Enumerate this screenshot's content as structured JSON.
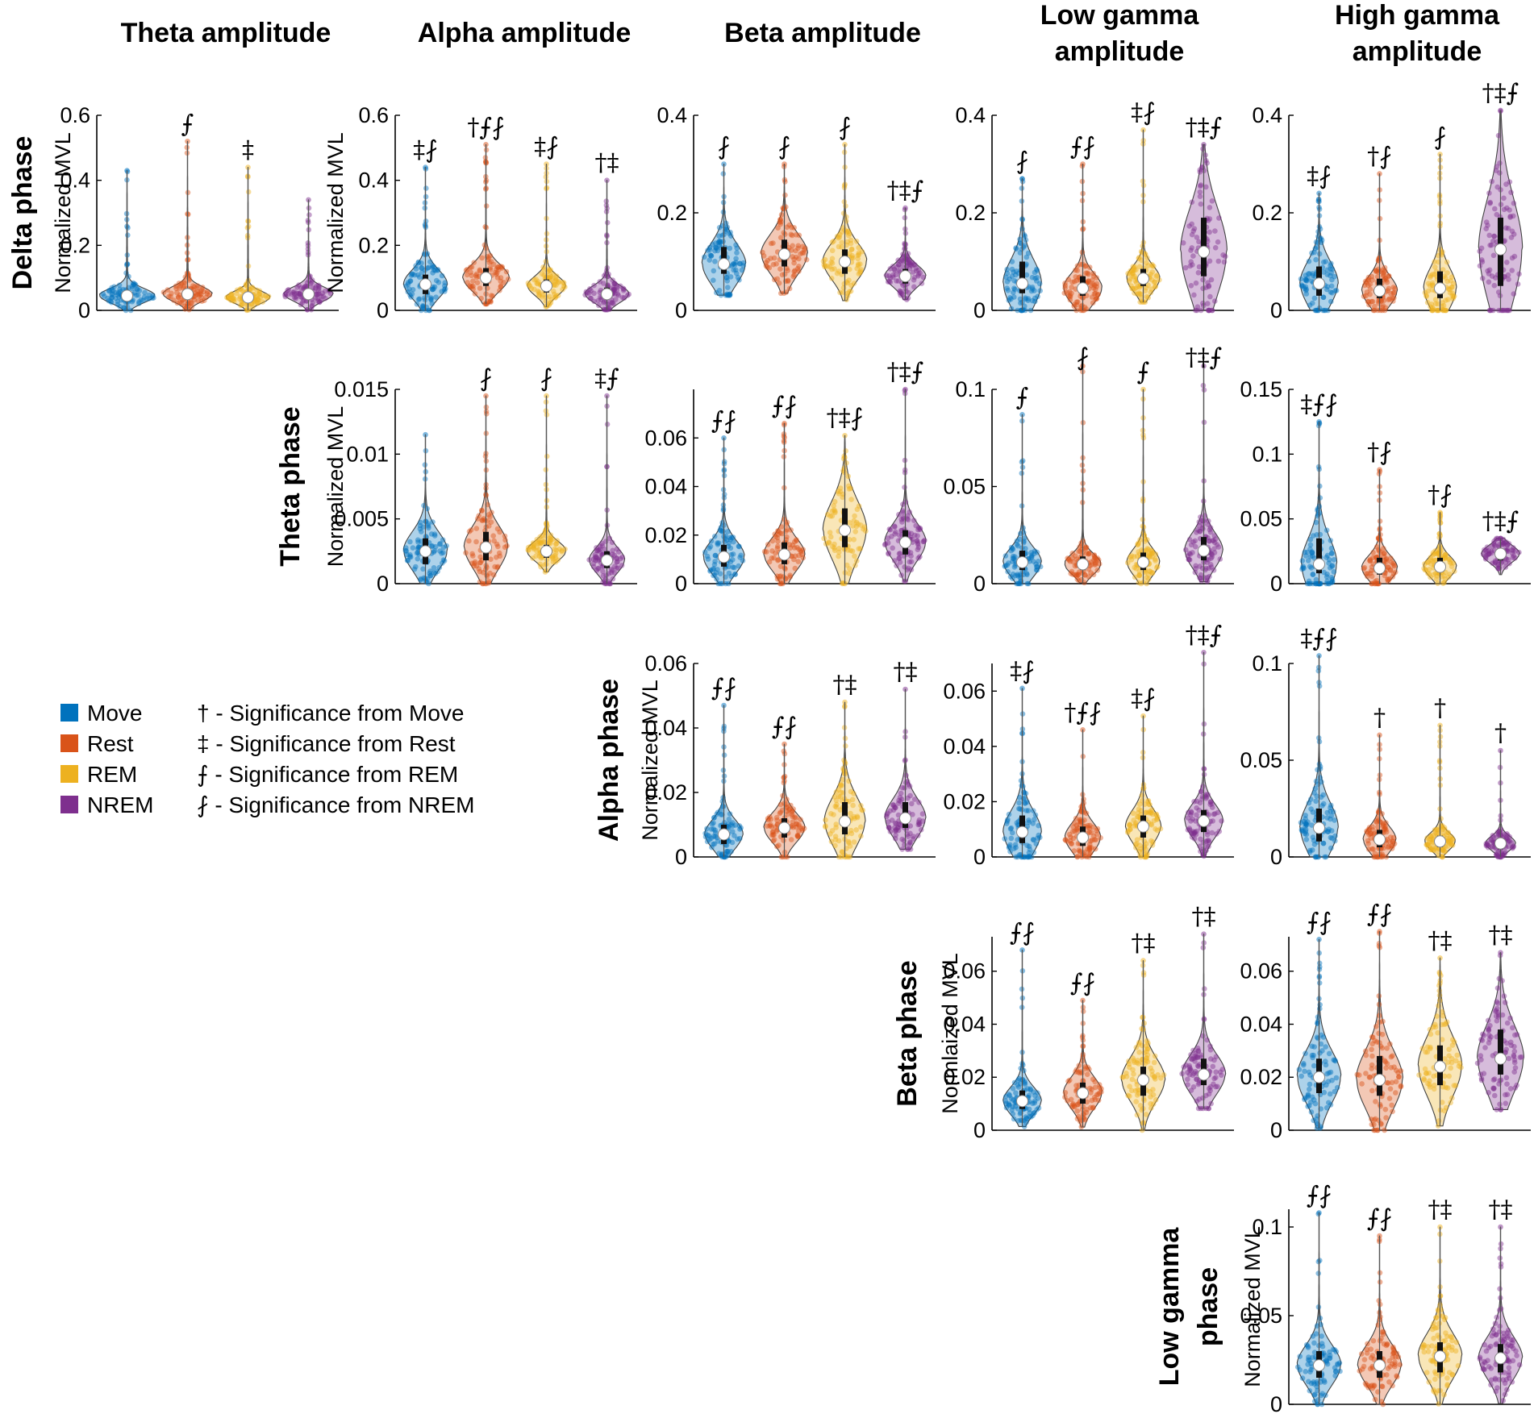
{
  "chart_data": {
    "type": "violin",
    "title": "",
    "column_titles": [
      [
        "Theta amplitude"
      ],
      [
        "Alpha amplitude"
      ],
      [
        "Beta amplitude"
      ],
      [
        "Low gamma",
        "amplitude"
      ],
      [
        "High gamma",
        "amplitude"
      ]
    ],
    "row_titles": [
      [
        "Delta phase"
      ],
      [
        "Theta phase"
      ],
      [
        "Alpha phase"
      ],
      [
        "Beta phase"
      ],
      [
        "Low gamma",
        "phase"
      ]
    ],
    "groups": [
      "Move",
      "Rest",
      "REM",
      "NREM"
    ],
    "colors": [
      "#0072BD",
      "#D95319",
      "#EDB120",
      "#7E2F8E"
    ],
    "legend": {
      "categories": [
        "Move",
        "Rest",
        "REM",
        "NREM"
      ],
      "significance": [
        "† - Significance from Move",
        "‡ - Significance from Rest",
        "⨍ - Significance from REM",
        "⨏ - Significance from NREM"
      ]
    },
    "panels": [
      {
        "row": 0,
        "col": 0,
        "ylabel": "Normalized MVL",
        "ylim": [
          0,
          0.6
        ],
        "ticks": [
          0,
          0.2,
          0.4,
          0.6
        ],
        "tick_labels": [
          "0",
          "0.2",
          "0.4",
          "0.6"
        ],
        "medians": [
          0.045,
          0.05,
          0.04,
          0.05
        ],
        "q1": [
          0.03,
          0.035,
          0.025,
          0.035
        ],
        "q3": [
          0.06,
          0.065,
          0.05,
          0.065
        ],
        "max": [
          0.43,
          0.52,
          0.44,
          0.34
        ],
        "widths": [
          1.0,
          0.9,
          0.8,
          0.9
        ],
        "sig": [
          "",
          "⨍",
          "‡",
          ""
        ]
      },
      {
        "row": 0,
        "col": 1,
        "ylabel": "Normalized MVL",
        "ylim": [
          0,
          0.6
        ],
        "ticks": [
          0,
          0.2,
          0.4,
          0.6
        ],
        "tick_labels": [
          "0",
          "0.2",
          "0.4",
          "0.6"
        ],
        "medians": [
          0.08,
          0.1,
          0.075,
          0.05
        ],
        "q1": [
          0.05,
          0.075,
          0.055,
          0.035
        ],
        "q3": [
          0.11,
          0.13,
          0.095,
          0.07
        ],
        "max": [
          0.44,
          0.51,
          0.45,
          0.4
        ],
        "widths": [
          0.8,
          0.85,
          0.7,
          0.8
        ],
        "sig": [
          "‡⨏",
          "†⨍⨏",
          "‡⨏",
          "†‡"
        ]
      },
      {
        "row": 0,
        "col": 2,
        "ylabel": "",
        "ylim": [
          0,
          0.4
        ],
        "ticks": [
          0,
          0.2,
          0.4
        ],
        "tick_labels": [
          "0",
          "0.2",
          "0.4"
        ],
        "medians": [
          0.095,
          0.115,
          0.1,
          0.07
        ],
        "q1": [
          0.075,
          0.09,
          0.075,
          0.055
        ],
        "q3": [
          0.13,
          0.145,
          0.125,
          0.085
        ],
        "max": [
          0.3,
          0.3,
          0.34,
          0.21
        ],
        "widths": [
          0.8,
          0.85,
          0.8,
          0.75
        ],
        "sig": [
          "⨏",
          "⨏",
          "⨏",
          "†‡⨍"
        ]
      },
      {
        "row": 0,
        "col": 3,
        "ylabel": "",
        "ylim": [
          0,
          0.4
        ],
        "ticks": [
          0,
          0.2,
          0.4
        ],
        "tick_labels": [
          "0",
          "0.2",
          "0.4"
        ],
        "medians": [
          0.055,
          0.045,
          0.065,
          0.12
        ],
        "q1": [
          0.035,
          0.03,
          0.05,
          0.07
        ],
        "q3": [
          0.1,
          0.07,
          0.085,
          0.19
        ],
        "max": [
          0.27,
          0.3,
          0.37,
          0.34
        ],
        "widths": [
          0.7,
          0.7,
          0.6,
          0.85
        ],
        "sig": [
          "⨏",
          "⨍⨏",
          "‡⨏",
          "†‡⨍"
        ]
      },
      {
        "row": 0,
        "col": 4,
        "ylabel": "",
        "ylim": [
          0,
          0.4
        ],
        "ticks": [
          0,
          0.2,
          0.4
        ],
        "tick_labels": [
          "0",
          "0.2",
          "0.4"
        ],
        "medians": [
          0.055,
          0.04,
          0.045,
          0.125
        ],
        "q1": [
          0.03,
          0.025,
          0.025,
          0.05
        ],
        "q3": [
          0.09,
          0.065,
          0.08,
          0.19
        ],
        "max": [
          0.24,
          0.28,
          0.32,
          0.41
        ],
        "widths": [
          0.7,
          0.65,
          0.6,
          0.8
        ],
        "sig": [
          "‡⨏",
          "†⨏",
          "⨏",
          "†‡⨍"
        ]
      },
      {
        "row": 1,
        "col": 1,
        "ylabel": "Normalized MVL",
        "ylim": [
          0,
          0.015
        ],
        "ticks": [
          0,
          0.005,
          0.01,
          0.015
        ],
        "tick_labels": [
          "0",
          "0.005",
          "0.01",
          "0.015"
        ],
        "medians": [
          0.0025,
          0.0028,
          0.0025,
          0.0018
        ],
        "q1": [
          0.0015,
          0.0018,
          0.002,
          0.0012
        ],
        "q3": [
          0.0035,
          0.004,
          0.003,
          0.0025
        ],
        "max": [
          0.0115,
          0.0145,
          0.0145,
          0.0145
        ],
        "widths": [
          0.8,
          0.8,
          0.7,
          0.65
        ],
        "sig": [
          "",
          "⨏",
          "⨏",
          "‡⨍"
        ]
      },
      {
        "row": 1,
        "col": 2,
        "ylabel": "",
        "ylim": [
          0,
          0.08
        ],
        "ticks": [
          0,
          0.02,
          0.04,
          0.06
        ],
        "tick_labels": [
          "0",
          "0.02",
          "0.04",
          "0.06"
        ],
        "medians": [
          0.011,
          0.012,
          0.022,
          0.017
        ],
        "q1": [
          0.007,
          0.008,
          0.015,
          0.012
        ],
        "q3": [
          0.016,
          0.017,
          0.031,
          0.022
        ],
        "max": [
          0.06,
          0.066,
          0.061,
          0.08
        ],
        "widths": [
          0.75,
          0.75,
          0.8,
          0.75
        ],
        "sig": [
          "⨍⨏",
          "⨍⨏",
          "†‡⨏",
          "†‡⨍"
        ]
      },
      {
        "row": 1,
        "col": 3,
        "ylabel": "",
        "ylim": [
          0,
          0.1
        ],
        "ticks": [
          0,
          0.05,
          0.1
        ],
        "tick_labels": [
          "0",
          "0.05",
          "0.1"
        ],
        "medians": [
          0.011,
          0.01,
          0.011,
          0.017
        ],
        "q1": [
          0.007,
          0.007,
          0.007,
          0.012
        ],
        "q3": [
          0.017,
          0.014,
          0.016,
          0.024
        ],
        "max": [
          0.087,
          0.112,
          0.1,
          0.112
        ],
        "widths": [
          0.7,
          0.65,
          0.6,
          0.7
        ],
        "sig": [
          "⨍",
          "⨏",
          "⨍",
          "†‡⨍"
        ]
      },
      {
        "row": 1,
        "col": 4,
        "ylabel": "",
        "ylim": [
          0,
          0.15
        ],
        "ticks": [
          0,
          0.05,
          0.1,
          0.15
        ],
        "tick_labels": [
          "0",
          "0.05",
          "0.1",
          "0.15"
        ],
        "medians": [
          0.015,
          0.012,
          0.013,
          0.023
        ],
        "q1": [
          0.008,
          0.007,
          0.009,
          0.018
        ],
        "q3": [
          0.035,
          0.02,
          0.02,
          0.027
        ],
        "max": [
          0.125,
          0.088,
          0.055,
          0.035
        ],
        "widths": [
          0.65,
          0.65,
          0.6,
          0.7
        ],
        "sig": [
          "‡⨍⨏",
          "†⨏",
          "†⨏",
          "†‡⨍"
        ]
      },
      {
        "row": 2,
        "col": 2,
        "ylabel": "Normalized MVL",
        "ylim": [
          0,
          0.06
        ],
        "ticks": [
          0,
          0.02,
          0.04,
          0.06
        ],
        "tick_labels": [
          "0",
          "0.02",
          "0.04",
          "0.06"
        ],
        "medians": [
          0.007,
          0.009,
          0.011,
          0.012
        ],
        "q1": [
          0.004,
          0.006,
          0.007,
          0.009
        ],
        "q3": [
          0.01,
          0.012,
          0.017,
          0.017
        ],
        "max": [
          0.047,
          0.035,
          0.048,
          0.052
        ],
        "widths": [
          0.7,
          0.75,
          0.75,
          0.75
        ],
        "sig": [
          "⨍⨏",
          "⨍⨏",
          "†‡",
          "†‡"
        ]
      },
      {
        "row": 2,
        "col": 3,
        "ylabel": "",
        "ylim": [
          0,
          0.07
        ],
        "ticks": [
          0,
          0.02,
          0.04,
          0.06
        ],
        "tick_labels": [
          "0",
          "0.02",
          "0.04",
          "0.06"
        ],
        "medians": [
          0.009,
          0.007,
          0.011,
          0.013
        ],
        "q1": [
          0.005,
          0.004,
          0.007,
          0.009
        ],
        "q3": [
          0.015,
          0.011,
          0.015,
          0.017
        ],
        "max": [
          0.061,
          0.046,
          0.051,
          0.074
        ],
        "widths": [
          0.7,
          0.65,
          0.65,
          0.7
        ],
        "sig": [
          "‡⨏",
          "†⨍⨏",
          "‡⨏",
          "†‡⨍"
        ]
      },
      {
        "row": 2,
        "col": 4,
        "ylabel": "",
        "ylim": [
          0,
          0.1
        ],
        "ticks": [
          0,
          0.05,
          0.1
        ],
        "tick_labels": [
          "0",
          "0.05",
          "0.1"
        ],
        "medians": [
          0.015,
          0.009,
          0.008,
          0.007
        ],
        "q1": [
          0.008,
          0.005,
          0.005,
          0.004
        ],
        "q3": [
          0.025,
          0.014,
          0.011,
          0.009
        ],
        "max": [
          0.104,
          0.063,
          0.068,
          0.055
        ],
        "widths": [
          0.7,
          0.6,
          0.55,
          0.55
        ],
        "sig": [
          "‡⨍⨏",
          "†",
          "†",
          "†"
        ]
      },
      {
        "row": 3,
        "col": 3,
        "ylabel": "Normlaized MVL",
        "ylim": [
          0,
          0.073
        ],
        "ticks": [
          0,
          0.02,
          0.04,
          0.06
        ],
        "tick_labels": [
          "0",
          "0.02",
          "0.04",
          "0.06"
        ],
        "medians": [
          0.011,
          0.014,
          0.019,
          0.021
        ],
        "q1": [
          0.008,
          0.01,
          0.013,
          0.017
        ],
        "q3": [
          0.015,
          0.018,
          0.024,
          0.027
        ],
        "max": [
          0.068,
          0.049,
          0.064,
          0.074
        ],
        "widths": [
          0.7,
          0.7,
          0.8,
          0.8
        ],
        "sig": [
          "⨍⨏",
          "⨍⨏",
          "†‡",
          "†‡"
        ]
      },
      {
        "row": 3,
        "col": 4,
        "ylabel": "",
        "ylim": [
          0,
          0.073
        ],
        "ticks": [
          0,
          0.02,
          0.04,
          0.06
        ],
        "tick_labels": [
          "0",
          "0.02",
          "0.04",
          "0.06"
        ],
        "medians": [
          0.02,
          0.019,
          0.024,
          0.027
        ],
        "q1": [
          0.014,
          0.013,
          0.017,
          0.021
        ],
        "q3": [
          0.027,
          0.028,
          0.032,
          0.038
        ],
        "max": [
          0.072,
          0.075,
          0.065,
          0.067
        ],
        "widths": [
          0.8,
          0.85,
          0.8,
          0.85
        ],
        "sig": [
          "⨍⨏",
          "⨍⨏",
          "†‡",
          "†‡"
        ]
      },
      {
        "row": 4,
        "col": 4,
        "ylabel": "Normalized MVL",
        "ylim": [
          0,
          0.11
        ],
        "ticks": [
          0,
          0.05,
          0.1
        ],
        "tick_labels": [
          "0",
          "0.05",
          "0.1"
        ],
        "medians": [
          0.022,
          0.022,
          0.027,
          0.026
        ],
        "q1": [
          0.015,
          0.015,
          0.018,
          0.018
        ],
        "q3": [
          0.03,
          0.03,
          0.035,
          0.034
        ],
        "max": [
          0.108,
          0.095,
          0.1,
          0.1
        ],
        "widths": [
          0.8,
          0.8,
          0.8,
          0.8
        ],
        "sig": [
          "⨍⨏",
          "⨍⨏",
          "†‡",
          "†‡"
        ]
      }
    ]
  }
}
